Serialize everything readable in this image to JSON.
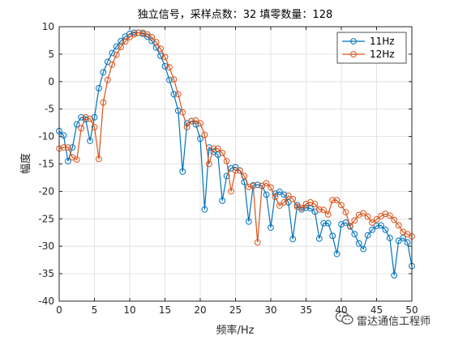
{
  "chart_data": {
    "type": "line",
    "title": "独立信号，采样点数：32 填零数量：128",
    "xlabel": "频率/Hz",
    "ylabel": "幅度",
    "xlim": [
      0,
      50
    ],
    "ylim": [
      -40,
      10
    ],
    "xticks": [
      "0",
      "5",
      "10",
      "15",
      "20",
      "25",
      "30",
      "35",
      "40",
      "45",
      "50"
    ],
    "yticks": [
      "10",
      "5",
      "0",
      "-5",
      "-10",
      "-15",
      "-20",
      "-25",
      "-30",
      "-35",
      "-40"
    ],
    "grid": true,
    "legend_position": "top-right",
    "marker": "circle",
    "series": [
      {
        "name": "11Hz",
        "color": "#0072BD",
        "x": [
          0.0,
          0.625,
          1.25,
          1.875,
          2.5,
          3.125,
          3.75,
          4.375,
          5.0,
          5.625,
          6.25,
          6.875,
          7.5,
          8.125,
          8.75,
          9.375,
          10.0,
          10.625,
          11.25,
          11.875,
          12.5,
          13.125,
          13.75,
          14.375,
          15.0,
          15.625,
          16.25,
          16.875,
          17.5,
          18.125,
          18.75,
          19.375,
          20.0,
          20.625,
          21.25,
          21.875,
          22.5,
          23.125,
          23.75,
          24.375,
          25.0,
          25.625,
          26.25,
          26.875,
          27.5,
          28.125,
          28.75,
          29.375,
          30.0,
          30.625,
          31.25,
          31.875,
          32.5,
          33.125,
          33.75,
          34.375,
          35.0,
          35.625,
          36.25,
          36.875,
          37.5,
          38.125,
          38.75,
          39.375,
          40.0,
          40.625,
          41.25,
          41.875,
          42.5,
          43.125,
          43.75,
          44.375,
          45.0,
          45.625,
          46.25,
          46.875,
          47.5,
          48.125,
          48.75,
          49.375,
          50.0
        ],
        "values": [
          -9.0,
          -9.8,
          -14.5,
          -12.0,
          -7.8,
          -6.5,
          -6.9,
          -10.8,
          -6.5,
          -1.2,
          1.7,
          3.6,
          5.2,
          6.4,
          7.4,
          8.2,
          8.7,
          8.9,
          8.9,
          8.7,
          8.2,
          7.4,
          6.2,
          4.7,
          2.8,
          0.3,
          -2.3,
          -5.3,
          -16.4,
          -7.6,
          -7.2,
          -7.8,
          -10.4,
          -23.3,
          -12.0,
          -12.8,
          -13.3,
          -21.7,
          -17.2,
          -15.8,
          -15.6,
          -16.2,
          -18.3,
          -25.5,
          -18.9,
          -18.8,
          -19.0,
          -20.6,
          -26.6,
          -20.4,
          -20.1,
          -20.6,
          -22.0,
          -28.7,
          -22.5,
          -23.3,
          -23.0,
          -23.1,
          -23.7,
          -28.6,
          -25.8,
          -25.8,
          -28.1,
          -31.4,
          -26.0,
          -25.7,
          -26.4,
          -27.8,
          -29.5,
          -30.5,
          -28.0,
          -27.0,
          -26.3,
          -26.2,
          -27.0,
          -28.5,
          -35.3,
          -29.0,
          -28.5,
          -29.3,
          -33.6
        ]
      },
      {
        "name": "12Hz",
        "color": "#D95319",
        "x": [
          0.0,
          0.625,
          1.25,
          1.875,
          2.5,
          3.125,
          3.75,
          4.375,
          5.0,
          5.625,
          6.25,
          6.875,
          7.5,
          8.125,
          8.75,
          9.375,
          10.0,
          10.625,
          11.25,
          11.875,
          12.5,
          13.125,
          13.75,
          14.375,
          15.0,
          15.625,
          16.25,
          16.875,
          17.5,
          18.125,
          18.75,
          19.375,
          20.0,
          20.625,
          21.25,
          21.875,
          22.5,
          23.125,
          23.75,
          24.375,
          25.0,
          25.625,
          26.25,
          26.875,
          27.5,
          28.125,
          28.75,
          29.375,
          30.0,
          30.625,
          31.25,
          31.875,
          32.5,
          33.125,
          33.75,
          34.375,
          35.0,
          35.625,
          36.25,
          36.875,
          37.5,
          38.125,
          38.75,
          39.375,
          40.0,
          40.625,
          41.25,
          41.875,
          42.5,
          43.125,
          43.75,
          44.375,
          45.0,
          45.625,
          46.25,
          46.875,
          47.5,
          48.125,
          48.75,
          49.375,
          50.0
        ],
        "values": [
          -12.2,
          -12.0,
          -12.0,
          -13.8,
          -14.2,
          -8.5,
          -6.5,
          -6.8,
          -8.3,
          -14.1,
          -3.8,
          0.3,
          3.1,
          4.9,
          6.3,
          7.3,
          8.1,
          8.6,
          8.9,
          8.9,
          8.6,
          8.1,
          7.2,
          6.0,
          4.5,
          2.6,
          0.4,
          -2.3,
          -5.6,
          -8.3,
          -7.2,
          -7.1,
          -7.6,
          -9.7,
          -15.0,
          -12.2,
          -12.2,
          -13.0,
          -14.5,
          -20.0,
          -16.2,
          -16.2,
          -17.2,
          -19.2,
          -19.0,
          -29.3,
          -19.0,
          -18.5,
          -19.3,
          -21.0,
          -22.6,
          -22.0,
          -20.8,
          -21.4,
          -22.8,
          -23.0,
          -22.3,
          -22.0,
          -22.3,
          -23.3,
          -23.4,
          -24.2,
          -21.6,
          -21.6,
          -22.5,
          -23.8,
          -26.3,
          -25.3,
          -24.3,
          -24.0,
          -24.6,
          -25.7,
          -25.1,
          -24.5,
          -24.1,
          -24.4,
          -25.2,
          -26.2,
          -27.4,
          -27.8,
          -28.2
        ]
      }
    ]
  },
  "watermark": {
    "text": "雷达通信工程师",
    "icon": "wechat-icon"
  }
}
